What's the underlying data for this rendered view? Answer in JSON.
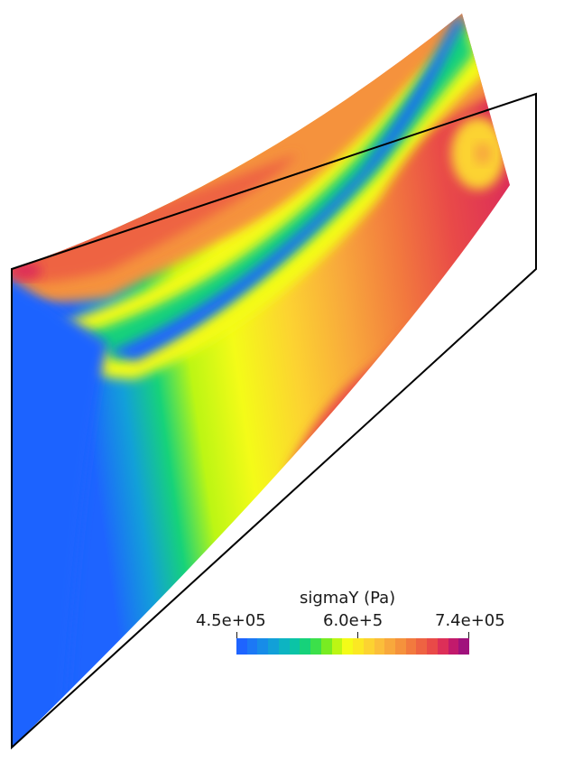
{
  "legend": {
    "title": "sigmaY (Pa)",
    "min_label": "4.5e+05",
    "mid_label": "6.0e+5",
    "max_label": "7.4e+05",
    "bands": [
      "#1e64ff",
      "#1c78f5",
      "#178ce8",
      "#12a0d8",
      "#0db4c2",
      "#0bc4a6",
      "#16d27a",
      "#3ce04a",
      "#78ec22",
      "#bcf614",
      "#f4fb18",
      "#fbe823",
      "#fcd331",
      "#fbbe3a",
      "#f8a83c",
      "#f5923c",
      "#f27a3e",
      "#ee6342",
      "#e94a48",
      "#dd2f58",
      "#c21a6c",
      "#a0117c"
    ],
    "colors": {
      "low": "#1e64ff",
      "mid": "#f4fb18",
      "high": "#a0117c"
    }
  }
}
